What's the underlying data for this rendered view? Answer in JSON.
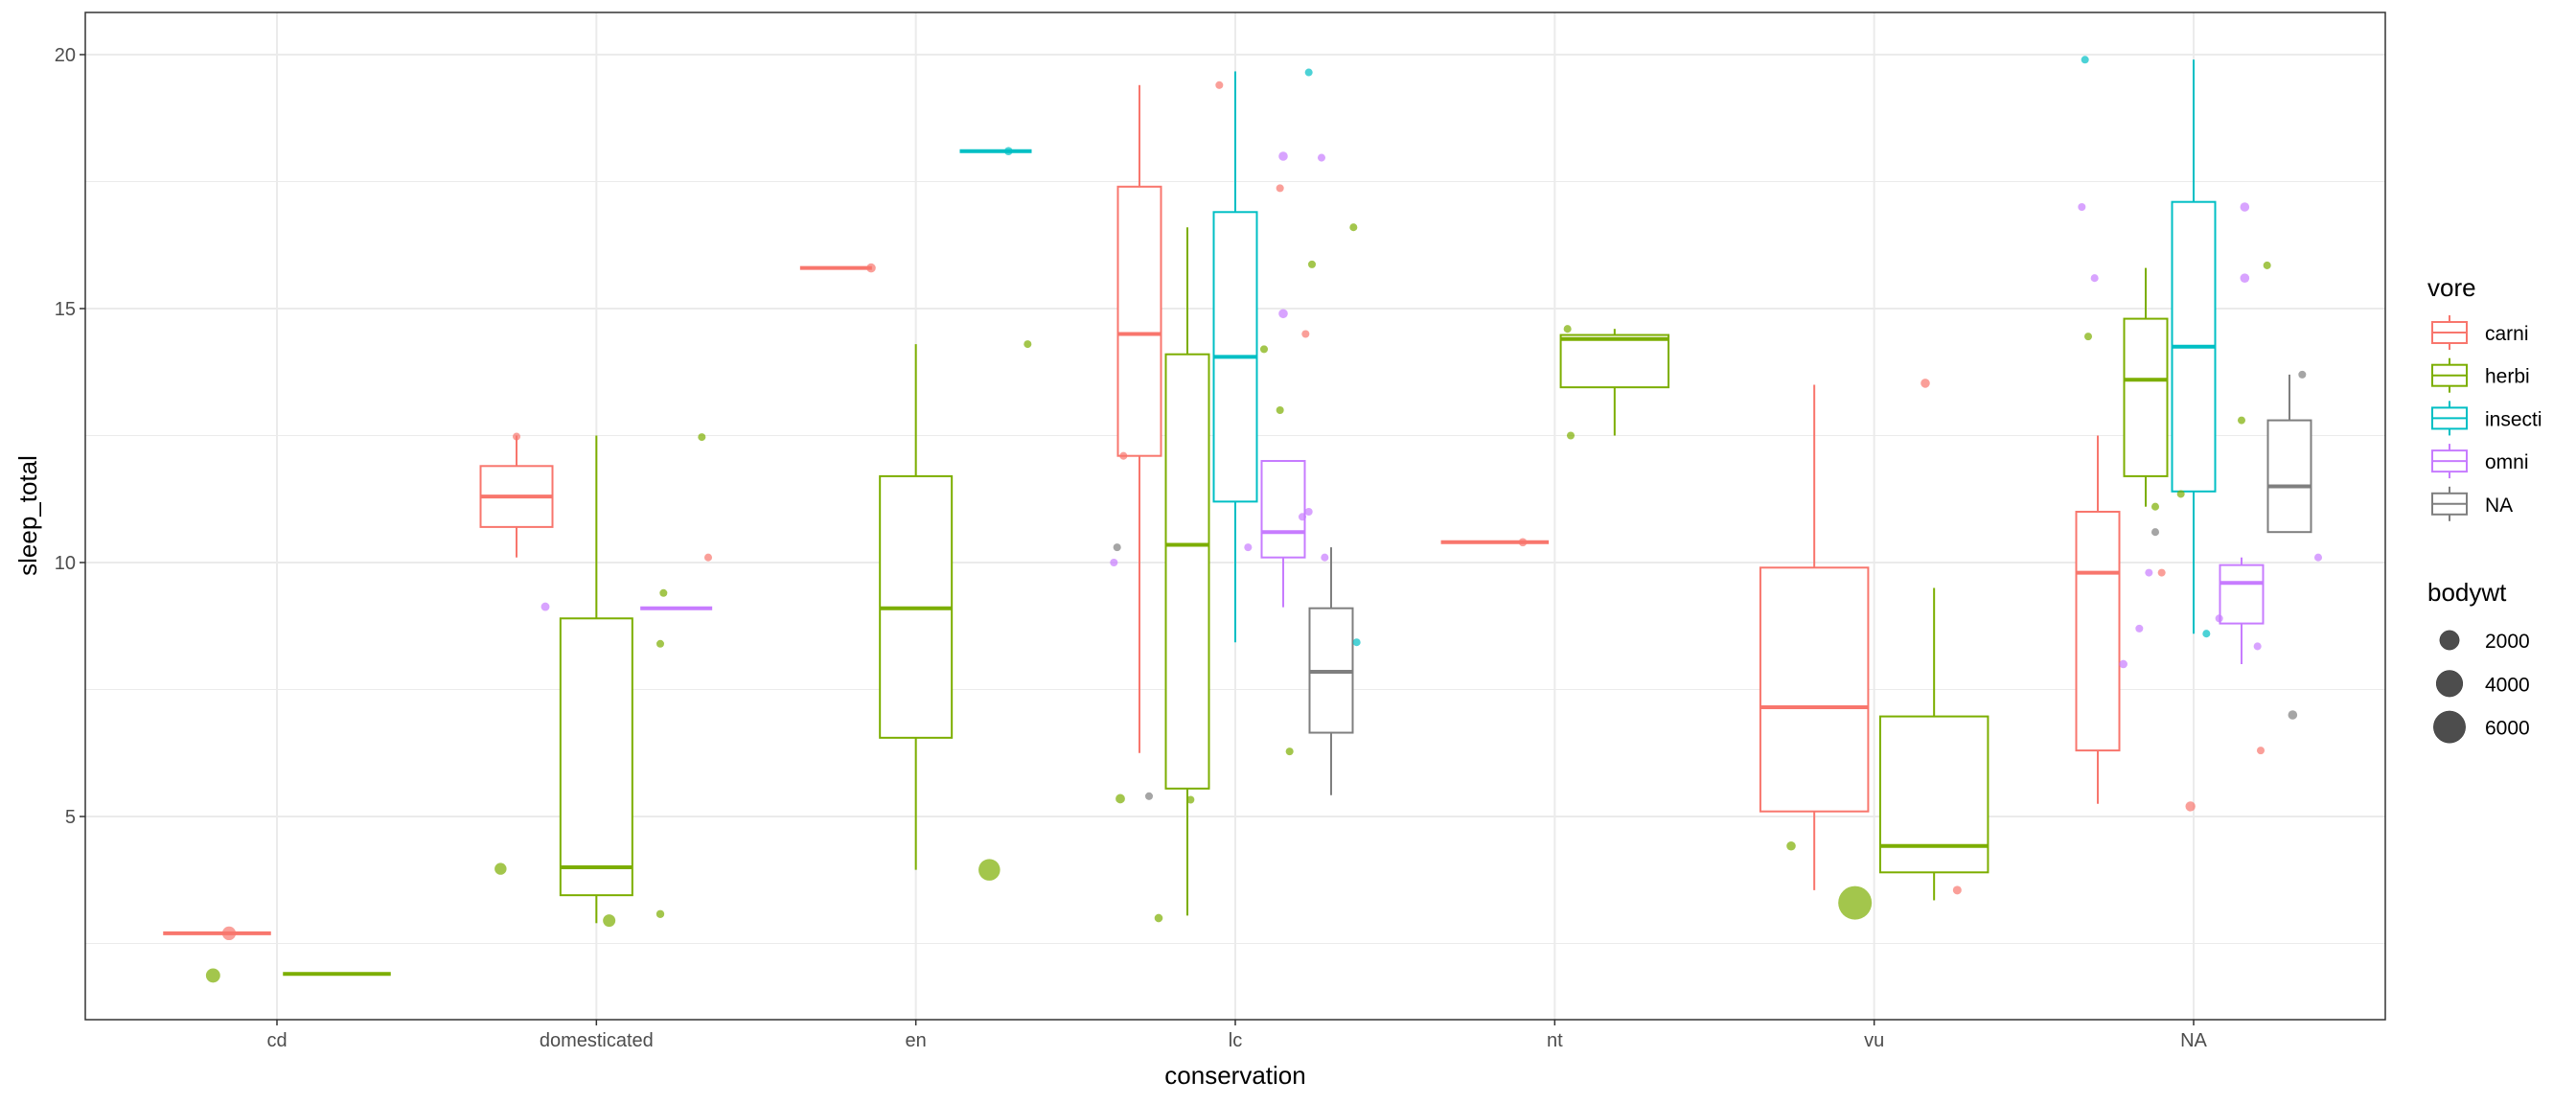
{
  "chart_data": {
    "type": "boxplot",
    "title": "",
    "xlabel": "conservation",
    "ylabel": "sleep_total",
    "categories": [
      "cd",
      "domesticated",
      "en",
      "lc",
      "nt",
      "vu",
      "NA"
    ],
    "y_ticks": [
      5,
      10,
      15,
      20
    ],
    "y_tick_labels": [
      "5",
      "10",
      "15",
      "20"
    ],
    "ylim": [
      1.0,
      20.83
    ],
    "grid": true,
    "legend_position": "right",
    "color_legend": {
      "title": "vore",
      "entries": [
        {
          "key": "carni",
          "label": "carni",
          "color": "#F8766D"
        },
        {
          "key": "herbi",
          "label": "herbi",
          "color": "#7CAE00"
        },
        {
          "key": "insecti",
          "label": "insecti",
          "color": "#00BFC4"
        },
        {
          "key": "omni",
          "label": "omni",
          "color": "#C77CFF"
        },
        {
          "key": "NA",
          "label": "NA",
          "color": "#7F7F7F"
        }
      ]
    },
    "size_legend": {
      "title": "bodywt",
      "entries": [
        {
          "value": 2000,
          "label": "2000"
        },
        {
          "value": 4000,
          "label": "4000"
        },
        {
          "value": 6000,
          "label": "6000"
        }
      ],
      "max": 6654
    },
    "boxes": [
      {
        "cat": "cd",
        "vore": "carni",
        "lo": 2.7,
        "q1": 2.7,
        "med": 2.7,
        "q3": 2.7,
        "hi": 2.7
      },
      {
        "cat": "cd",
        "vore": "herbi",
        "lo": 1.9,
        "q1": 1.9,
        "med": 1.9,
        "q3": 1.9,
        "hi": 1.9
      },
      {
        "cat": "domesticated",
        "vore": "carni",
        "lo": 10.1,
        "q1": 10.7,
        "med": 11.3,
        "q3": 11.9,
        "hi": 12.5
      },
      {
        "cat": "domesticated",
        "vore": "herbi",
        "lo": 2.9,
        "q1": 3.45,
        "med": 4.0,
        "q3": 8.9,
        "hi": 12.5
      },
      {
        "cat": "domesticated",
        "vore": "omni",
        "lo": 9.1,
        "q1": 9.1,
        "med": 9.1,
        "q3": 9.1,
        "hi": 9.1
      },
      {
        "cat": "en",
        "vore": "carni",
        "lo": 15.8,
        "q1": 15.8,
        "med": 15.8,
        "q3": 15.8,
        "hi": 15.8
      },
      {
        "cat": "en",
        "vore": "herbi",
        "lo": 3.95,
        "q1": 6.55,
        "med": 9.1,
        "q3": 11.7,
        "hi": 14.3
      },
      {
        "cat": "en",
        "vore": "insecti",
        "lo": 18.1,
        "q1": 18.1,
        "med": 18.1,
        "q3": 18.1,
        "hi": 18.1
      },
      {
        "cat": "lc",
        "vore": "carni",
        "lo": 6.25,
        "q1": 12.1,
        "med": 14.5,
        "q3": 17.4,
        "hi": 19.4
      },
      {
        "cat": "lc",
        "vore": "herbi",
        "lo": 3.05,
        "q1": 5.55,
        "med": 10.35,
        "q3": 14.1,
        "hi": 16.6
      },
      {
        "cat": "lc",
        "vore": "insecti",
        "lo": 8.43,
        "q1": 11.2,
        "med": 14.05,
        "q3": 16.9,
        "hi": 19.67
      },
      {
        "cat": "lc",
        "vore": "omni",
        "lo": 9.12,
        "q1": 10.1,
        "med": 10.6,
        "q3": 12.0,
        "hi": 12.0
      },
      {
        "cat": "lc",
        "vore": "NA",
        "lo": 5.42,
        "q1": 6.65,
        "med": 7.85,
        "q3": 9.1,
        "hi": 10.3
      },
      {
        "cat": "nt",
        "vore": "carni",
        "lo": 10.4,
        "q1": 10.4,
        "med": 10.4,
        "q3": 10.4,
        "hi": 10.4
      },
      {
        "cat": "nt",
        "vore": "herbi",
        "lo": 12.5,
        "q1": 13.45,
        "med": 14.4,
        "q3": 14.48,
        "hi": 14.6
      },
      {
        "cat": "vu",
        "vore": "carni",
        "lo": 3.55,
        "q1": 5.1,
        "med": 7.15,
        "q3": 9.9,
        "hi": 13.5
      },
      {
        "cat": "vu",
        "vore": "herbi",
        "lo": 3.35,
        "q1": 3.9,
        "med": 4.42,
        "q3": 6.97,
        "hi": 9.5
      },
      {
        "cat": "NA",
        "vore": "carni",
        "lo": 5.25,
        "q1": 6.3,
        "med": 9.8,
        "q3": 11.0,
        "hi": 12.5
      },
      {
        "cat": "NA",
        "vore": "herbi",
        "lo": 11.1,
        "q1": 11.7,
        "med": 13.6,
        "q3": 14.8,
        "hi": 15.8
      },
      {
        "cat": "NA",
        "vore": "insecti",
        "lo": 8.6,
        "q1": 11.4,
        "med": 14.25,
        "q3": 17.1,
        "hi": 19.9
      },
      {
        "cat": "NA",
        "vore": "omni",
        "lo": 8.0,
        "q1": 8.8,
        "med": 9.6,
        "q3": 9.95,
        "hi": 10.1
      },
      {
        "cat": "NA",
        "vore": "NA",
        "lo": 10.6,
        "q1": 10.6,
        "med": 11.5,
        "q3": 12.8,
        "hi": 13.7
      }
    ],
    "points": [
      {
        "x": 0.85,
        "y": 2.7,
        "vore": "carni",
        "bodywt": 800
      },
      {
        "x": 0.8,
        "y": 1.87,
        "vore": "herbi",
        "bodywt": 900
      },
      {
        "x": 1.75,
        "y": 12.48,
        "vore": "carni",
        "bodywt": 5
      },
      {
        "x": 2.35,
        "y": 10.1,
        "vore": "carni",
        "bodywt": 5
      },
      {
        "x": 1.84,
        "y": 9.13,
        "vore": "omni",
        "bodywt": 86
      },
      {
        "x": 1.7,
        "y": 3.97,
        "vore": "herbi",
        "bodywt": 521
      },
      {
        "x": 2.04,
        "y": 2.95,
        "vore": "herbi",
        "bodywt": 600
      },
      {
        "x": 2.2,
        "y": 3.08,
        "vore": "herbi",
        "bodywt": 35
      },
      {
        "x": 2.21,
        "y": 9.4,
        "vore": "herbi",
        "bodywt": 2
      },
      {
        "x": 2.2,
        "y": 8.4,
        "vore": "herbi",
        "bodywt": 1
      },
      {
        "x": 2.33,
        "y": 12.47,
        "vore": "herbi",
        "bodywt": 1
      },
      {
        "x": 2.86,
        "y": 15.8,
        "vore": "carni",
        "bodywt": 160
      },
      {
        "x": 3.29,
        "y": 18.1,
        "vore": "insecti",
        "bodywt": 60
      },
      {
        "x": 3.35,
        "y": 14.3,
        "vore": "herbi",
        "bodywt": 3
      },
      {
        "x": 3.23,
        "y": 3.95,
        "vore": "herbi",
        "bodywt": 2547
      },
      {
        "x": 3.95,
        "y": 19.4,
        "vore": "carni",
        "bodywt": 5
      },
      {
        "x": 4.23,
        "y": 19.65,
        "vore": "insecti",
        "bodywt": 3
      },
      {
        "x": 4.15,
        "y": 18.0,
        "vore": "omni",
        "bodywt": 160
      },
      {
        "x": 4.27,
        "y": 17.97,
        "vore": "omni",
        "bodywt": 5
      },
      {
        "x": 4.14,
        "y": 17.37,
        "vore": "carni",
        "bodywt": 5
      },
      {
        "x": 4.37,
        "y": 16.6,
        "vore": "herbi",
        "bodywt": 1
      },
      {
        "x": 4.24,
        "y": 15.87,
        "vore": "herbi",
        "bodywt": 1
      },
      {
        "x": 4.15,
        "y": 14.9,
        "vore": "omni",
        "bodywt": 160
      },
      {
        "x": 4.22,
        "y": 14.5,
        "vore": "carni",
        "bodywt": 5
      },
      {
        "x": 4.09,
        "y": 14.2,
        "vore": "herbi",
        "bodywt": 3
      },
      {
        "x": 4.14,
        "y": 13.0,
        "vore": "herbi",
        "bodywt": 1
      },
      {
        "x": 4.23,
        "y": 11.0,
        "vore": "omni",
        "bodywt": 5
      },
      {
        "x": 4.21,
        "y": 10.9,
        "vore": "omni",
        "bodywt": 5
      },
      {
        "x": 3.63,
        "y": 10.3,
        "vore": "NA",
        "bodywt": 5
      },
      {
        "x": 3.62,
        "y": 10.0,
        "vore": "omni",
        "bodywt": 5
      },
      {
        "x": 4.04,
        "y": 10.3,
        "vore": "omni",
        "bodywt": 5
      },
      {
        "x": 4.28,
        "y": 10.1,
        "vore": "omni",
        "bodywt": 5
      },
      {
        "x": 4.38,
        "y": 8.43,
        "vore": "insecti",
        "bodywt": 1
      },
      {
        "x": 4.17,
        "y": 6.28,
        "vore": "herbi",
        "bodywt": 5
      },
      {
        "x": 3.65,
        "y": 12.1,
        "vore": "carni",
        "bodywt": 5
      },
      {
        "x": 3.64,
        "y": 5.35,
        "vore": "herbi",
        "bodywt": 187
      },
      {
        "x": 3.73,
        "y": 5.4,
        "vore": "NA",
        "bodywt": 5
      },
      {
        "x": 3.86,
        "y": 5.33,
        "vore": "herbi",
        "bodywt": 5
      },
      {
        "x": 3.76,
        "y": 3.0,
        "vore": "herbi",
        "bodywt": 60
      },
      {
        "x": 4.9,
        "y": 10.4,
        "vore": "carni",
        "bodywt": 60
      },
      {
        "x": 5.04,
        "y": 14.6,
        "vore": "herbi",
        "bodywt": 3
      },
      {
        "x": 5.05,
        "y": 12.5,
        "vore": "herbi",
        "bodywt": 3
      },
      {
        "x": 6.16,
        "y": 13.53,
        "vore": "carni",
        "bodywt": 160
      },
      {
        "x": 5.74,
        "y": 4.42,
        "vore": "herbi",
        "bodywt": 160
      },
      {
        "x": 5.94,
        "y": 3.3,
        "vore": "herbi",
        "bodywt": 6654
      },
      {
        "x": 6.26,
        "y": 3.55,
        "vore": "carni",
        "bodywt": 100
      },
      {
        "x": 6.66,
        "y": 19.9,
        "vore": "insecti",
        "bodywt": 3
      },
      {
        "x": 6.65,
        "y": 17.0,
        "vore": "omni",
        "bodywt": 5
      },
      {
        "x": 6.69,
        "y": 15.6,
        "vore": "omni",
        "bodywt": 5
      },
      {
        "x": 6.67,
        "y": 14.45,
        "vore": "herbi",
        "bodywt": 3
      },
      {
        "x": 6.88,
        "y": 10.6,
        "vore": "NA",
        "bodywt": 3
      },
      {
        "x": 6.86,
        "y": 9.8,
        "vore": "omni",
        "bodywt": 3
      },
      {
        "x": 6.9,
        "y": 9.8,
        "vore": "carni",
        "bodywt": 3
      },
      {
        "x": 6.88,
        "y": 11.1,
        "vore": "herbi",
        "bodywt": 3
      },
      {
        "x": 6.96,
        "y": 11.35,
        "vore": "herbi",
        "bodywt": 1
      },
      {
        "x": 6.83,
        "y": 8.7,
        "vore": "omni",
        "bodywt": 3
      },
      {
        "x": 6.78,
        "y": 8.0,
        "vore": "omni",
        "bodywt": 60
      },
      {
        "x": 6.99,
        "y": 5.2,
        "vore": "carni",
        "bodywt": 250
      },
      {
        "x": 7.04,
        "y": 8.6,
        "vore": "insecti",
        "bodywt": 3
      },
      {
        "x": 7.08,
        "y": 8.9,
        "vore": "omni",
        "bodywt": 5
      },
      {
        "x": 7.16,
        "y": 17.0,
        "vore": "omni",
        "bodywt": 160
      },
      {
        "x": 7.16,
        "y": 15.6,
        "vore": "omni",
        "bodywt": 160
      },
      {
        "x": 7.23,
        "y": 15.85,
        "vore": "herbi",
        "bodywt": 3
      },
      {
        "x": 7.15,
        "y": 12.8,
        "vore": "herbi",
        "bodywt": 1
      },
      {
        "x": 7.2,
        "y": 8.35,
        "vore": "omni",
        "bodywt": 3
      },
      {
        "x": 7.31,
        "y": 7.0,
        "vore": "NA",
        "bodywt": 160
      },
      {
        "x": 7.21,
        "y": 6.3,
        "vore": "carni",
        "bodywt": 5
      },
      {
        "x": 7.34,
        "y": 13.7,
        "vore": "NA",
        "bodywt": 3
      },
      {
        "x": 7.39,
        "y": 10.1,
        "vore": "omni",
        "bodywt": 3
      }
    ]
  }
}
